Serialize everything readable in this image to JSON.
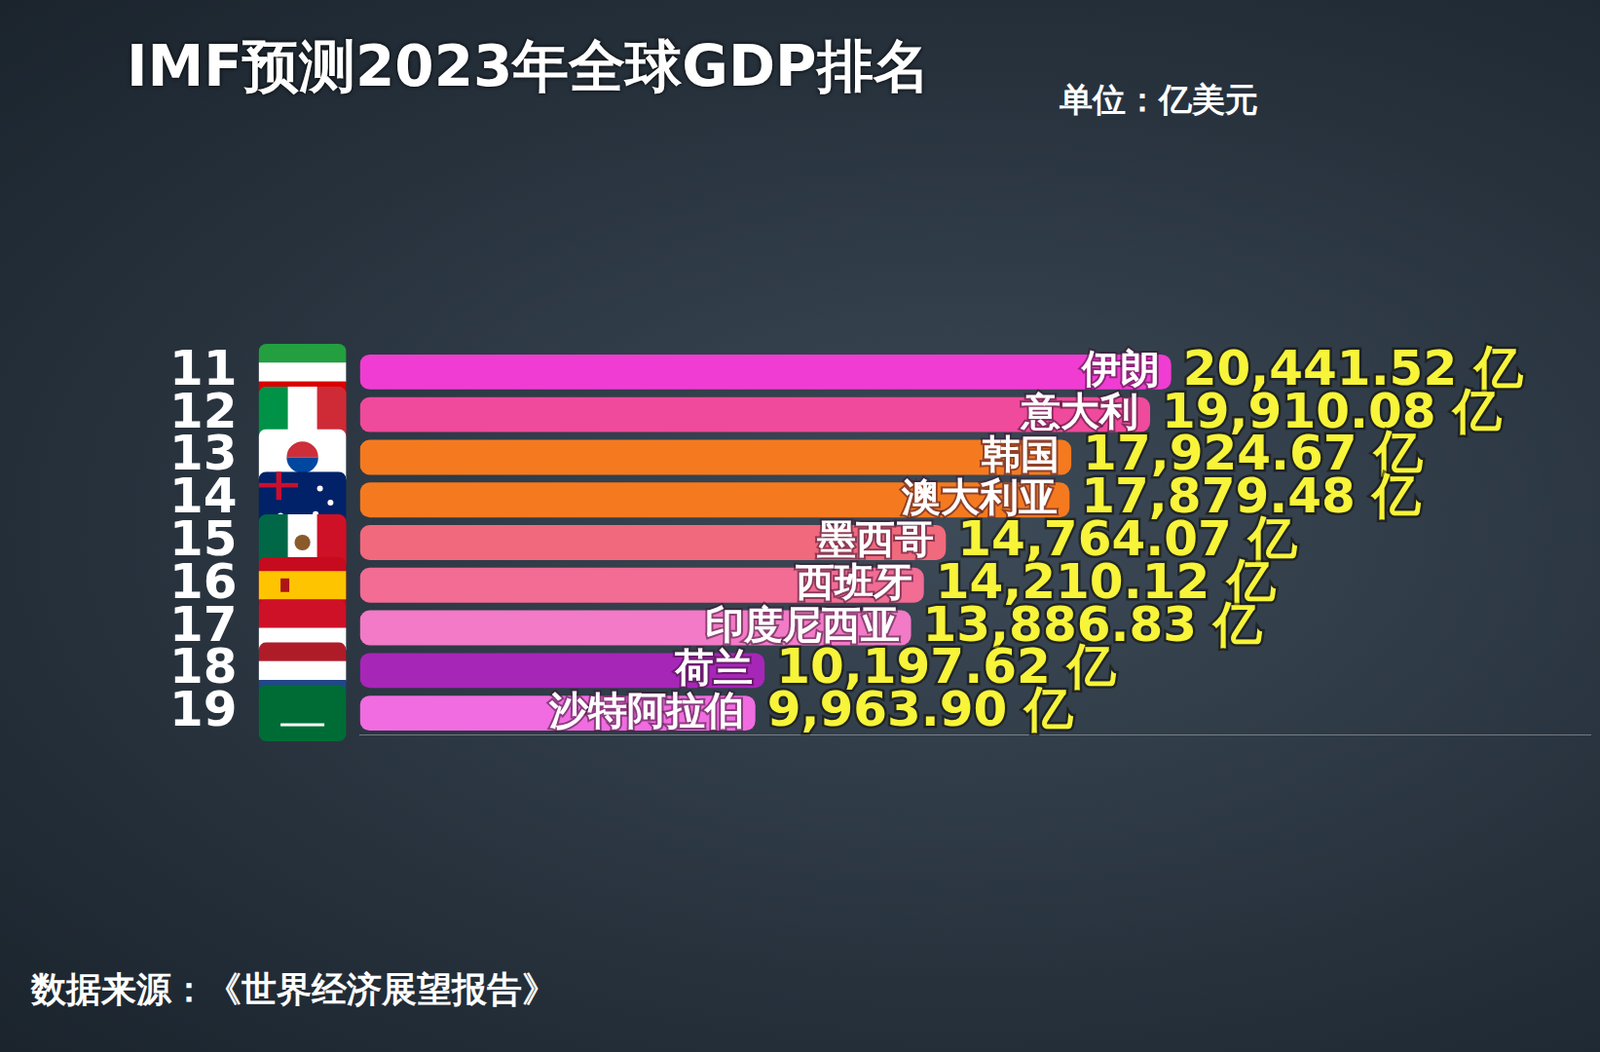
{
  "chart_data": {
    "type": "bar",
    "orientation": "horizontal",
    "title": "IMF预测2023年全球GDP排名",
    "unit": "单位：亿美元",
    "source": "数据来源：《世界经济展望报告》",
    "categories": [
      "伊朗",
      "意大利",
      "韩国",
      "澳大利亚",
      "墨西哥",
      "西班牙",
      "印度尼西亚",
      "荷兰",
      "沙特阿拉伯"
    ],
    "ranks": [
      11,
      12,
      13,
      14,
      15,
      16,
      17,
      18,
      19
    ],
    "values": [
      20441.52,
      19910.08,
      17924.67,
      17879.48,
      14764.07,
      14210.12,
      13886.83,
      10197.62,
      9963.9
    ],
    "value_labels": [
      "20,441.52 亿",
      "19,910.08 亿",
      "17,924.67 亿",
      "17,879.48 亿",
      "14,764.07 亿",
      "14,210.12 亿",
      "13,886.83 亿",
      "10,197.62 亿",
      "9,963.90 亿"
    ],
    "colors": [
      "#f03cd2",
      "#ef4a9c",
      "#f57a1f",
      "#f57a1f",
      "#f1697c",
      "#f26c94",
      "#f27ac6",
      "#a626b8",
      "#f06ce0"
    ],
    "xlim": [
      0,
      31000
    ],
    "data_labels": true,
    "grid": false,
    "tick_labels": "y"
  }
}
